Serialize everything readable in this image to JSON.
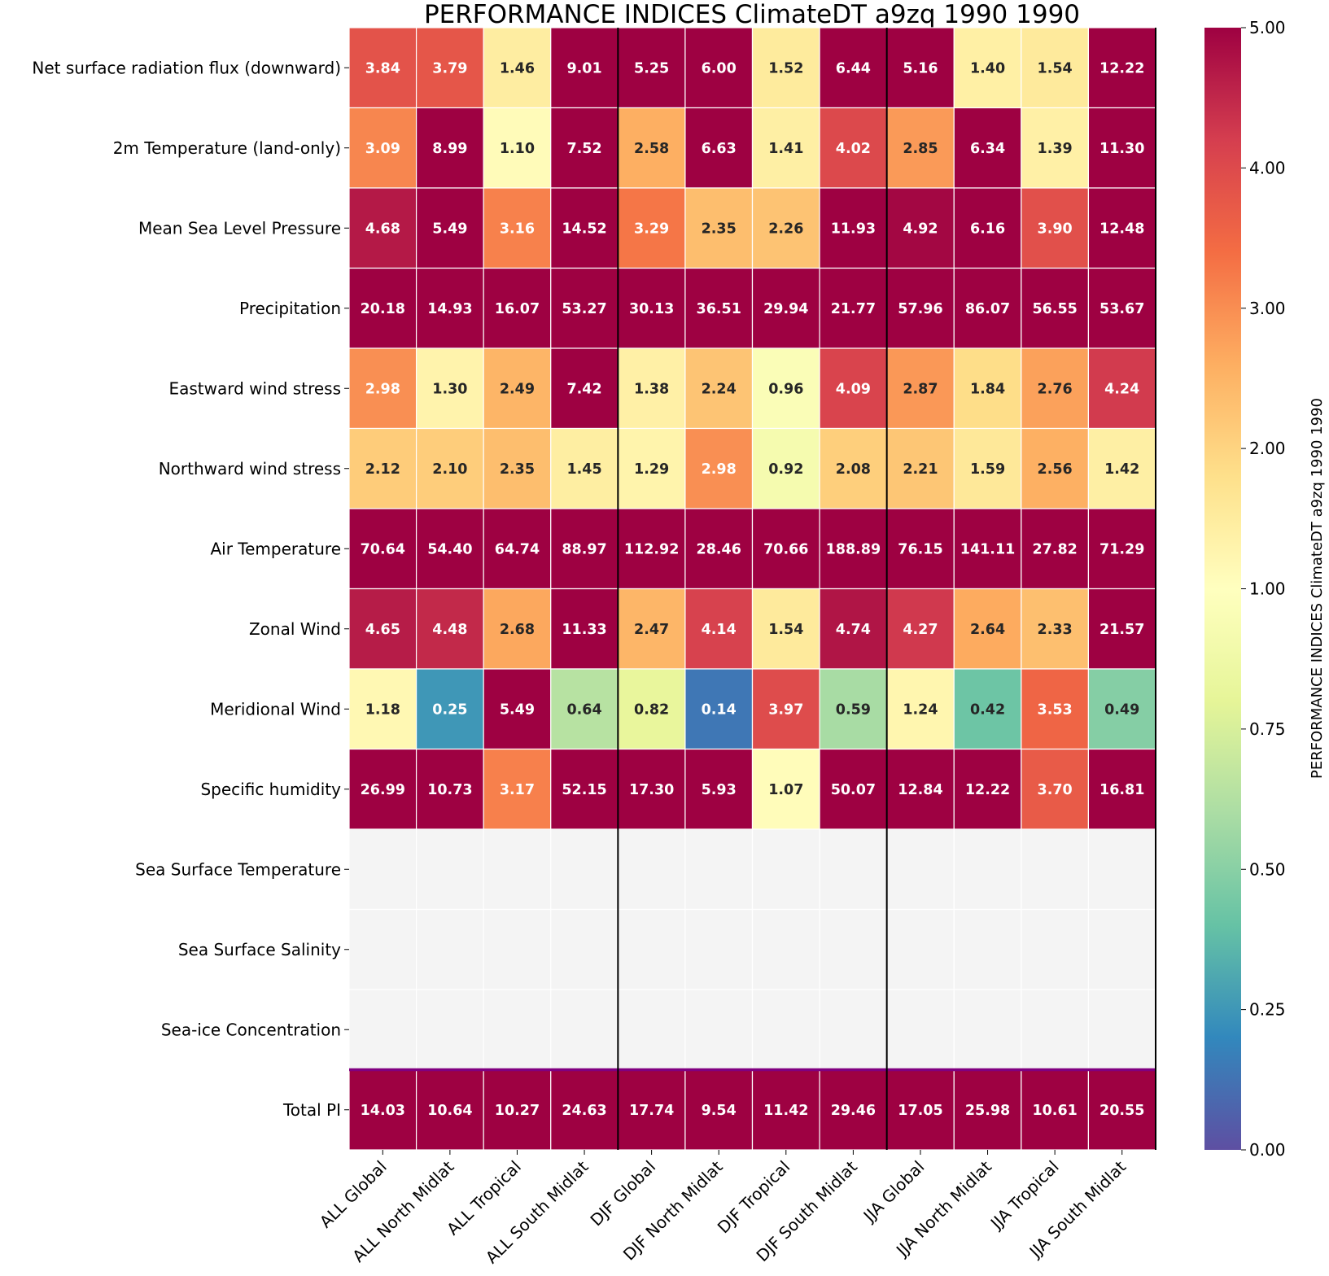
{
  "chart_data": {
    "type": "heatmap",
    "title": "PERFORMANCE INDICES ClimateDT a9zq 1990 1990",
    "colorbar_label": "PERFORMANCE INDICES ClimateDT a9zq 1990 1990",
    "colormap": "Spectral_r",
    "colorbar_ticks": [
      "0.00",
      "0.25",
      "0.50",
      "0.75",
      "1.00",
      "2.00",
      "3.00",
      "4.00",
      "5.00"
    ],
    "colorbar_tick_values": [
      0,
      0.25,
      0.5,
      0.75,
      1,
      2,
      3,
      4,
      5
    ],
    "vmin": 0,
    "vmax": 5,
    "missing_color": "#f4f4f4",
    "separator_color": "#800080",
    "columns": [
      "ALL Global",
      "ALL North Midlat",
      "ALL Tropical",
      "ALL South Midlat",
      "DJF Global",
      "DJF North Midlat",
      "DJF Tropical",
      "DJF South Midlat",
      "JJA Global",
      "JJA North Midlat",
      "JJA Tropical",
      "JJA South Midlat"
    ],
    "rows": [
      "Net surface radiation flux (downward)",
      "2m Temperature (land-only)",
      "Mean Sea Level Pressure",
      "Precipitation",
      "Eastward wind stress",
      "Northward wind stress",
      "Air Temperature",
      "Zonal Wind",
      "Meridional Wind",
      "Specific humidity",
      "Sea Surface Temperature",
      "Sea Surface Salinity",
      "Sea-ice Concentration",
      "Total PI"
    ],
    "values": [
      [
        3.84,
        3.79,
        1.46,
        9.01,
        5.25,
        6.0,
        1.52,
        6.44,
        5.16,
        1.4,
        1.54,
        12.22
      ],
      [
        3.09,
        8.99,
        1.1,
        7.52,
        2.58,
        6.63,
        1.41,
        4.02,
        2.85,
        6.34,
        1.39,
        11.3
      ],
      [
        4.68,
        5.49,
        3.16,
        14.52,
        3.29,
        2.35,
        2.26,
        11.93,
        4.92,
        6.16,
        3.9,
        12.48
      ],
      [
        20.18,
        14.93,
        16.07,
        53.27,
        30.13,
        36.51,
        29.94,
        21.77,
        57.96,
        86.07,
        56.55,
        53.67
      ],
      [
        2.98,
        1.3,
        2.49,
        7.42,
        1.38,
        2.24,
        0.96,
        4.09,
        2.87,
        1.84,
        2.76,
        4.24
      ],
      [
        2.12,
        2.1,
        2.35,
        1.45,
        1.29,
        2.98,
        0.92,
        2.08,
        2.21,
        1.59,
        2.56,
        1.42
      ],
      [
        70.64,
        54.4,
        64.74,
        88.97,
        112.92,
        28.46,
        70.66,
        188.89,
        76.15,
        141.11,
        27.82,
        71.29
      ],
      [
        4.65,
        4.48,
        2.68,
        11.33,
        2.47,
        4.14,
        1.54,
        4.74,
        4.27,
        2.64,
        2.33,
        21.57
      ],
      [
        1.18,
        0.25,
        5.49,
        0.64,
        0.82,
        0.14,
        3.97,
        0.59,
        1.24,
        0.42,
        3.53,
        0.49
      ],
      [
        26.99,
        10.73,
        3.17,
        52.15,
        17.3,
        5.93,
        1.07,
        50.07,
        12.84,
        12.22,
        3.7,
        16.81
      ],
      [
        null,
        null,
        null,
        null,
        null,
        null,
        null,
        null,
        null,
        null,
        null,
        null
      ],
      [
        null,
        null,
        null,
        null,
        null,
        null,
        null,
        null,
        null,
        null,
        null,
        null
      ],
      [
        null,
        null,
        null,
        null,
        null,
        null,
        null,
        null,
        null,
        null,
        null,
        null
      ],
      [
        14.03,
        10.64,
        10.27,
        24.63,
        17.74,
        9.54,
        11.42,
        29.46,
        17.05,
        25.98,
        10.61,
        20.55
      ]
    ]
  }
}
